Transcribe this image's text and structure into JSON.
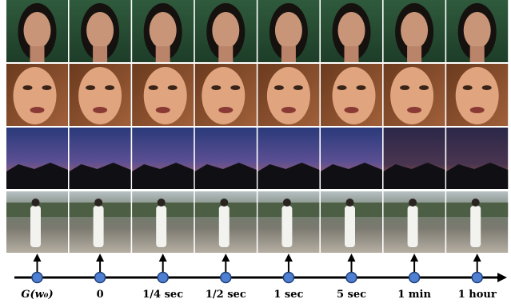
{
  "timeline": {
    "labels": [
      "G(w₀)",
      "0",
      "1/4 sec",
      "1/2 sec",
      "1 sec",
      "5 sec",
      "1 min",
      "1 hour"
    ]
  }
}
